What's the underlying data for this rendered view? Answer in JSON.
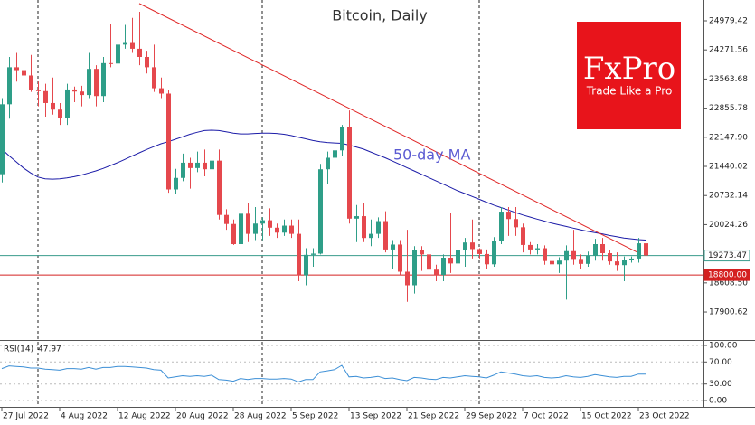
{
  "chart_data": {
    "type": "candlestick",
    "title": "Bitcoin, Daily",
    "x": [
      "2022-07-27",
      "2022-07-28",
      "2022-07-29",
      "2022-07-30",
      "2022-07-31",
      "2022-08-01",
      "2022-08-02",
      "2022-08-03",
      "2022-08-04",
      "2022-08-05",
      "2022-08-06",
      "2022-08-07",
      "2022-08-08",
      "2022-08-09",
      "2022-08-10",
      "2022-08-11",
      "2022-08-12",
      "2022-08-13",
      "2022-08-14",
      "2022-08-15",
      "2022-08-16",
      "2022-08-17",
      "2022-08-18",
      "2022-08-19",
      "2022-08-20",
      "2022-08-21",
      "2022-08-22",
      "2022-08-23",
      "2022-08-24",
      "2022-08-25",
      "2022-08-26",
      "2022-08-27",
      "2022-08-28",
      "2022-08-29",
      "2022-08-30",
      "2022-08-31",
      "2022-09-01",
      "2022-09-02",
      "2022-09-03",
      "2022-09-04",
      "2022-09-05",
      "2022-09-06",
      "2022-09-07",
      "2022-09-08",
      "2022-09-09",
      "2022-09-10",
      "2022-09-11",
      "2022-09-12",
      "2022-09-13",
      "2022-09-14",
      "2022-09-15",
      "2022-09-16",
      "2022-09-17",
      "2022-09-18",
      "2022-09-19",
      "2022-09-20",
      "2022-09-21",
      "2022-09-22",
      "2022-09-23",
      "2022-09-24",
      "2022-09-25",
      "2022-09-26",
      "2022-09-27",
      "2022-09-28",
      "2022-09-29",
      "2022-09-30",
      "2022-10-01",
      "2022-10-02",
      "2022-10-03",
      "2022-10-04",
      "2022-10-05",
      "2022-10-06",
      "2022-10-07",
      "2022-10-08",
      "2022-10-09",
      "2022-10-10",
      "2022-10-11",
      "2022-10-12",
      "2022-10-13",
      "2022-10-14",
      "2022-10-15",
      "2022-10-16",
      "2022-10-17",
      "2022-10-18",
      "2022-10-19",
      "2022-10-20",
      "2022-10-21",
      "2022-10-22",
      "2022-10-23",
      "2022-10-24"
    ],
    "open": [
      21250,
      22950,
      23850,
      23780,
      23650,
      23300,
      23270,
      22980,
      22820,
      22620,
      23310,
      23260,
      23175,
      23810,
      23150,
      23950,
      23940,
      24400,
      24440,
      24300,
      24100,
      23850,
      23340,
      23210,
      20880,
      21160,
      21530,
      21400,
      21530,
      21370,
      21580,
      20260,
      20040,
      19550,
      20290,
      19800,
      20050,
      20130,
      19950,
      19830,
      20000,
      19800,
      18790,
      19290,
      19320,
      21370,
      21650,
      21830,
      22400,
      20170,
      20230,
      19700,
      19800,
      20110,
      19420,
      19540,
      18880,
      18550,
      19400,
      19300,
      18930,
      18800,
      19220,
      19080,
      19410,
      19590,
      19430,
      19310,
      19060,
      19630,
      20340,
      20160,
      19960,
      19530,
      19420,
      19450,
      19140,
      19060,
      19150,
      19380,
      19190,
      19070,
      19270,
      19550,
      19330,
      19130,
      19040,
      19170,
      19200,
      19570
    ],
    "high": [
      23100,
      24100,
      24200,
      23950,
      24150,
      23500,
      23450,
      23600,
      22980,
      23450,
      23380,
      23400,
      24200,
      23900,
      24100,
      24900,
      24450,
      24880,
      25050,
      25200,
      24250,
      24400,
      23600,
      23300,
      21380,
      21750,
      21650,
      21800,
      21850,
      21800,
      21850,
      20400,
      20150,
      20400,
      20550,
      20450,
      20200,
      20420,
      20050,
      20150,
      20150,
      20150,
      19450,
      19450,
      21500,
      21800,
      21850,
      22450,
      22800,
      20500,
      20550,
      20150,
      20200,
      20350,
      19650,
      19650,
      19900,
      19500,
      19500,
      19350,
      19050,
      19300,
      20300,
      19550,
      19700,
      20150,
      19450,
      19420,
      19720,
      20450,
      20450,
      20450,
      20050,
      19600,
      19550,
      19520,
      19280,
      19230,
      19520,
      19900,
      19300,
      19370,
      19680,
      19700,
      19400,
      19350,
      19250,
      19250,
      19700,
      19650
    ],
    "low": [
      21050,
      22600,
      23500,
      23500,
      23250,
      22900,
      22650,
      22700,
      22450,
      22450,
      23000,
      22900,
      23100,
      22900,
      23000,
      23850,
      23800,
      24300,
      24200,
      23900,
      23700,
      23250,
      23100,
      20800,
      20780,
      21080,
      20900,
      21300,
      21200,
      21300,
      20150,
      19900,
      19530,
      19500,
      19600,
      19650,
      19650,
      19750,
      19700,
      19750,
      19700,
      18650,
      18550,
      19000,
      19300,
      21000,
      21350,
      21700,
      20050,
      19600,
      19600,
      19500,
      19700,
      19350,
      18950,
      18800,
      18150,
      18350,
      18900,
      18700,
      18650,
      18650,
      18850,
      18800,
      19000,
      19200,
      19200,
      18950,
      19000,
      19550,
      19750,
      19750,
      19350,
      19300,
      19300,
      19050,
      18900,
      18850,
      18200,
      19050,
      18950,
      19000,
      19150,
      19150,
      19050,
      18900,
      18650,
      19100,
      19100,
      19230
    ],
    "close": [
      22950,
      23850,
      23780,
      23650,
      23300,
      23270,
      22980,
      22820,
      22620,
      23310,
      23260,
      23175,
      23810,
      23150,
      23950,
      23940,
      24400,
      24440,
      24300,
      24100,
      23850,
      23340,
      23210,
      20880,
      21160,
      21530,
      21400,
      21530,
      21370,
      21580,
      20260,
      20040,
      19550,
      20290,
      19800,
      20050,
      20130,
      19950,
      19830,
      20000,
      19800,
      18790,
      19290,
      19320,
      21370,
      21650,
      21830,
      22400,
      20170,
      20230,
      19700,
      19800,
      20110,
      19420,
      19540,
      18880,
      18550,
      19400,
      19300,
      18930,
      18800,
      19220,
      19080,
      19410,
      19590,
      19430,
      19310,
      19060,
      19630,
      20340,
      20160,
      19960,
      19530,
      19420,
      19450,
      19140,
      19060,
      19150,
      19380,
      19190,
      19070,
      19270,
      19550,
      19330,
      19130,
      19040,
      19170,
      19200,
      19570,
      19273.47
    ],
    "up_color": "#2e9e88",
    "down_color": "#e5484d",
    "xlim": [
      "2022-07-26",
      "2022-11-01"
    ],
    "xticks": [
      {
        "value": "2022-07-27",
        "label": "27 Jul 2022"
      },
      {
        "value": "2022-08-04",
        "label": "4 Aug 2022"
      },
      {
        "value": "2022-08-12",
        "label": "12 Aug 2022"
      },
      {
        "value": "2022-08-20",
        "label": "20 Aug 2022"
      },
      {
        "value": "2022-08-28",
        "label": "28 Aug 2022"
      },
      {
        "value": "2022-09-05",
        "label": "5 Sep 2022"
      },
      {
        "value": "2022-09-13",
        "label": "13 Sep 2022"
      },
      {
        "value": "2022-09-21",
        "label": "21 Sep 2022"
      },
      {
        "value": "2022-09-29",
        "label": "29 Sep 2022"
      },
      {
        "value": "2022-10-07",
        "label": "7 Oct 2022"
      },
      {
        "value": "2022-10-15",
        "label": "15 Oct 2022"
      },
      {
        "value": "2022-10-23",
        "label": "23 Oct 2022"
      }
    ],
    "ylim": [
      17220,
      25485
    ],
    "yticks": [
      24979.42,
      24271.56,
      23563.68,
      22855.78,
      {
        "value": 22147.9,
        "label": "22147.90"
      },
      21440.02,
      20732.14,
      20024.26,
      {
        "value": 18608.5,
        "label": "18608.50"
      },
      17900.62
    ],
    "levels": [
      {
        "value": 19273.47,
        "label": "19273.47",
        "color": "#3a9b8c"
      },
      {
        "value": 18800,
        "label": "18800.00",
        "color": "#d42020"
      }
    ],
    "ma": {
      "name": "50-day MA",
      "color": "#1c1ca8",
      "values": [
        21860,
        21700,
        21550,
        21400,
        21280,
        21180,
        21140,
        21130,
        21140,
        21160,
        21190,
        21230,
        21280,
        21330,
        21390,
        21460,
        21530,
        21610,
        21690,
        21770,
        21850,
        21920,
        21990,
        22040,
        22100,
        22160,
        22220,
        22270,
        22310,
        22320,
        22310,
        22280,
        22250,
        22230,
        22230,
        22240,
        22250,
        22250,
        22240,
        22220,
        22190,
        22150,
        22110,
        22070,
        22040,
        22020,
        22010,
        22000,
        21960,
        21910,
        21860,
        21790,
        21720,
        21650,
        21570,
        21490,
        21410,
        21330,
        21250,
        21170,
        21090,
        21010,
        20930,
        20850,
        20780,
        20710,
        20640,
        20570,
        20500,
        20440,
        20380,
        20320,
        20260,
        20210,
        20160,
        20110,
        20060,
        20020,
        19980,
        19940,
        19900,
        19860,
        19830,
        19800,
        19760,
        19730,
        19700,
        19680,
        19660,
        19650
      ]
    },
    "trendline": {
      "color": "#e02828",
      "points": [
        {
          "x": "2022-08-15",
          "y": 25400
        },
        {
          "x": "2022-10-23",
          "y": 19340
        }
      ]
    },
    "rsi": {
      "name": "RSI(14)",
      "color": "#3c8fd6",
      "ylim": [
        -11.5,
        108.2
      ],
      "yticks": [
        {
          "value": 100,
          "label": "100.00"
        },
        {
          "value": 70,
          "label": "70.00"
        },
        {
          "value": 30,
          "label": "30.00"
        },
        {
          "value": 0,
          "label": "0.00"
        }
      ],
      "values": [
        58,
        63,
        62,
        61,
        59,
        59,
        57,
        56,
        55,
        58,
        58,
        57,
        60,
        57,
        60,
        60,
        62,
        62,
        61,
        60,
        59,
        56,
        55,
        41,
        43,
        45,
        44,
        45,
        44,
        46,
        38,
        37,
        35,
        40,
        38,
        40,
        40,
        39,
        39,
        40,
        39,
        34,
        38,
        38,
        52,
        54,
        56,
        64,
        43,
        44,
        41,
        42,
        44,
        40,
        41,
        38,
        36,
        42,
        41,
        39,
        38,
        42,
        41,
        43,
        45,
        44,
        43,
        41,
        46,
        52,
        50,
        48,
        45,
        44,
        45,
        42,
        41,
        42,
        45,
        43,
        42,
        44,
        47,
        45,
        43,
        42,
        44,
        44,
        48,
        47.97
      ]
    }
  },
  "logo": {
    "brand": "FxPro",
    "tagline": "Trade Like a Pro"
  }
}
